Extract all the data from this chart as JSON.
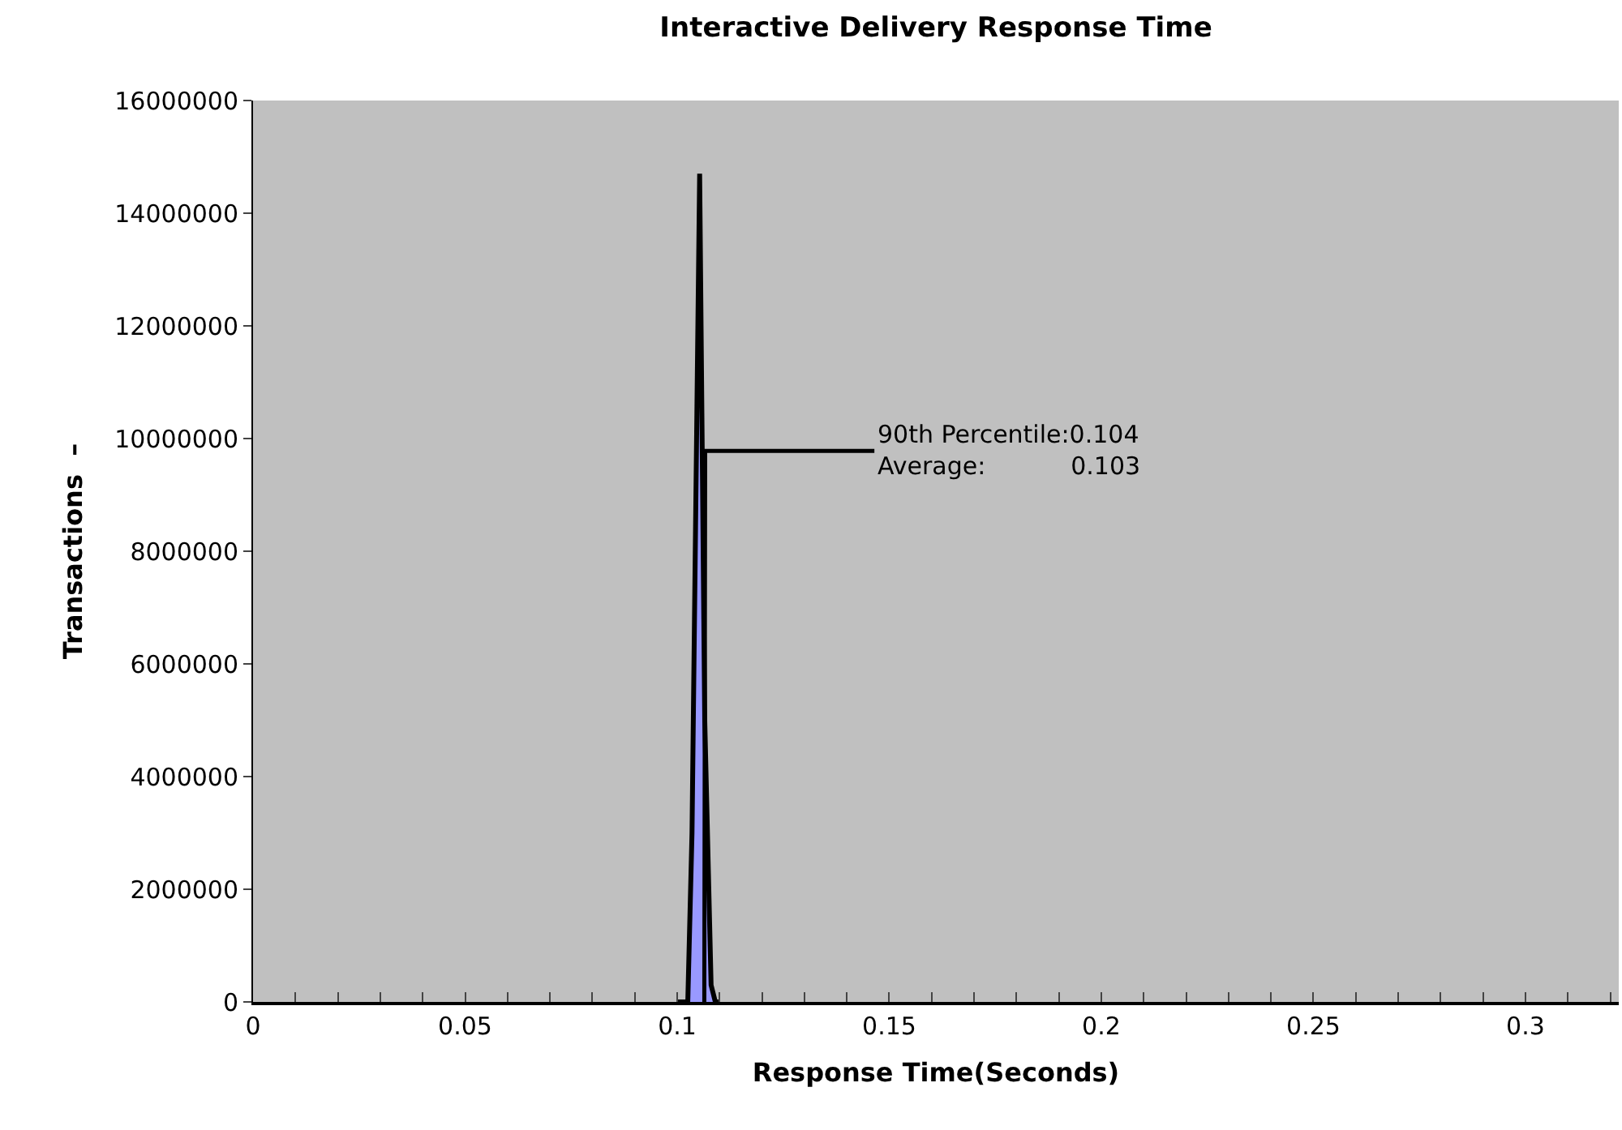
{
  "chart_data": {
    "type": "area",
    "title": "Interactive Delivery Response Time",
    "xlabel": "Response Time(Seconds)",
    "ylabel": "Transactions  –",
    "x": [
      0.1,
      0.1025,
      0.1035,
      0.1053,
      0.1065,
      0.108,
      0.109,
      0.11
    ],
    "series": [
      {
        "color": "#9999ff",
        "values": [
          0,
          0,
          3000000,
          14700000,
          5000000,
          300000,
          0,
          0
        ]
      },
      {
        "type": "line",
        "color": "#000000",
        "x": [
          0.1064,
          0.1066,
          0.1465
        ],
        "values": [
          0,
          9780000,
          9780000
        ]
      }
    ],
    "xlim": [
      0,
      0.322
    ],
    "xticks": [
      0,
      {
        "value": 0.01,
        "label": null
      },
      {
        "value": 0.02,
        "label": null
      },
      {
        "value": 0.03,
        "label": null
      },
      {
        "value": 0.04,
        "label": null
      },
      0.05,
      {
        "value": 0.06,
        "label": null
      },
      {
        "value": 0.07,
        "label": null
      },
      {
        "value": 0.08,
        "label": null
      },
      {
        "value": 0.09,
        "label": null
      },
      0.1,
      {
        "value": 0.11,
        "label": null
      },
      {
        "value": 0.12,
        "label": null
      },
      {
        "value": 0.13,
        "label": null
      },
      {
        "value": 0.14,
        "label": null
      },
      0.15,
      {
        "value": 0.16,
        "label": null
      },
      {
        "value": 0.17,
        "label": null
      },
      {
        "value": 0.18,
        "label": null
      },
      {
        "value": 0.19,
        "label": null
      },
      0.2,
      {
        "value": 0.21,
        "label": null
      },
      {
        "value": 0.22,
        "label": null
      },
      {
        "value": 0.23,
        "label": null
      },
      {
        "value": 0.24,
        "label": null
      },
      0.25,
      {
        "value": 0.26,
        "label": null
      },
      {
        "value": 0.27,
        "label": null
      },
      {
        "value": 0.28,
        "label": null
      },
      {
        "value": 0.29,
        "label": null
      },
      0.3,
      {
        "value": 0.31,
        "label": null
      },
      {
        "value": 0.32,
        "label": null
      }
    ],
    "ylim": [
      0,
      16000000
    ],
    "yticks": [
      0,
      2000000,
      4000000,
      6000000,
      8000000,
      10000000,
      12000000,
      14000000,
      16000000
    ],
    "grid": false,
    "annotations": [
      {
        "text": "90th Percentile:0.104\nAverage:           0.103",
        "x": 0.1465,
        "y": 9780000
      }
    ]
  }
}
